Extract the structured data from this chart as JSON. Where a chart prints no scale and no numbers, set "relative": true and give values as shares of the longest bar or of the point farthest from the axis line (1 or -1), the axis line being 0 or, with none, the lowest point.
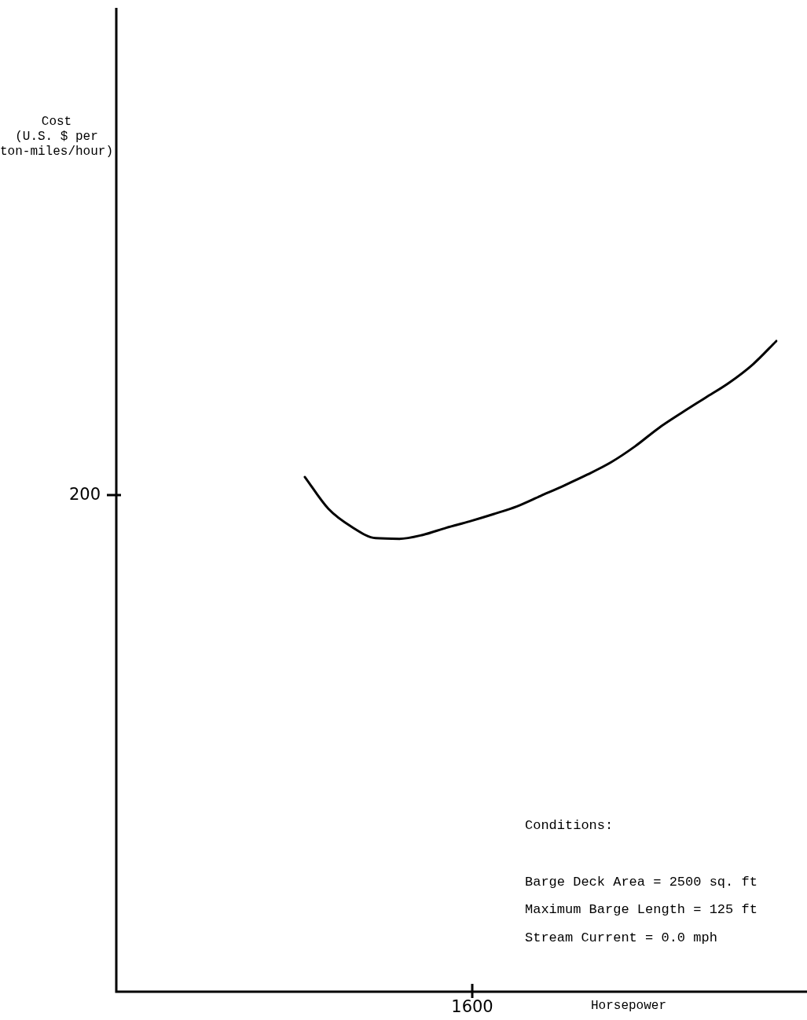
{
  "chart_data": {
    "type": "line",
    "relative": true,
    "xlabel": "Horsepower",
    "legend": false,
    "marker": "none",
    "line_style": "solid",
    "annotations": [
      "Cost (U.S. $ per ton-miles/hour)",
      "200",
      "1600",
      "Conditions:",
      "Barge Deck Area = 2500 sq. ft",
      "Maximum Barge Length = 125 ft",
      "Stream Current = 0.0 mph"
    ],
    "categories": [
      null,
      null,
      null,
      null,
      null,
      null,
      null,
      null,
      null,
      null,
      null,
      null,
      null,
      null,
      null,
      null,
      null,
      null,
      null,
      null,
      null,
      null,
      null,
      null,
      null,
      null,
      null,
      null,
      null
    ],
    "series": [
      {
        "color": "#000000",
        "values": [
          null,
          null,
          null,
          null,
          null,
          null,
          null,
          null,
          0.791,
          0.742,
          0.714,
          0.697,
          0.696,
          0.702,
          0.713,
          0.723,
          0.734,
          0.746,
          0.762,
          0.778,
          0.795,
          0.814,
          0.838,
          0.866,
          0.89,
          0.913,
          0.936,
          0.964,
          1
        ]
      }
    ]
  }
}
